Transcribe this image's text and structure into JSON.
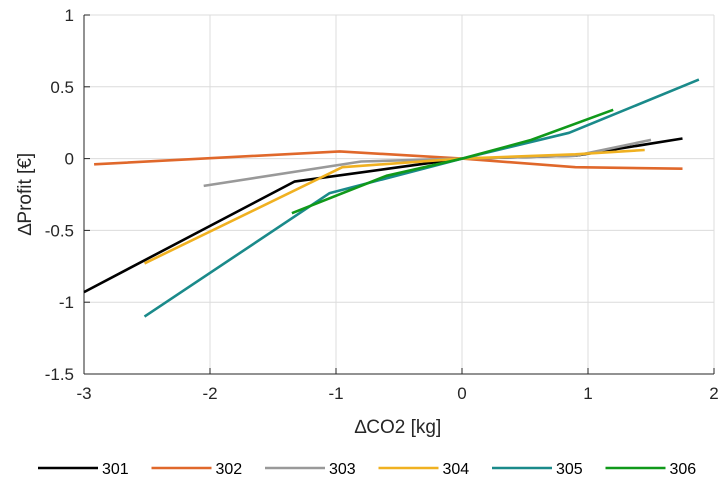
{
  "chart_data": {
    "type": "line",
    "title": "",
    "xlabel": "∆CO2 [kg]",
    "ylabel": "∆Profit [€]",
    "xlim": [
      -3,
      2
    ],
    "ylim": [
      -1.5,
      1
    ],
    "xticks": [
      -3,
      -2,
      -1,
      0,
      1,
      2
    ],
    "yticks": [
      -1.5,
      -1,
      -0.5,
      0,
      0.5,
      1
    ],
    "xtick_labels": [
      "-3",
      "-2",
      "-1",
      "0",
      "1",
      "2"
    ],
    "ytick_labels": [
      "-1.5",
      "-1",
      "-0.5",
      "0",
      "0.5",
      "1"
    ],
    "grid": true,
    "legend_position": "bottom",
    "series": [
      {
        "name": "301",
        "color": "#000000",
        "points": [
          [
            -3.0,
            -0.93
          ],
          [
            -1.33,
            -0.16
          ],
          [
            -0.5,
            -0.06
          ],
          [
            0,
            0
          ],
          [
            0.9,
            0.02
          ],
          [
            1.75,
            0.14
          ]
        ]
      },
      {
        "name": "302",
        "color": "#e0682b",
        "points": [
          [
            -2.92,
            -0.04
          ],
          [
            -0.97,
            0.05
          ],
          [
            0,
            0
          ],
          [
            0.9,
            -0.06
          ],
          [
            1.75,
            -0.07
          ]
        ]
      },
      {
        "name": "303",
        "color": "#999999",
        "points": [
          [
            -2.05,
            -0.19
          ],
          [
            -0.8,
            -0.02
          ],
          [
            0,
            0
          ],
          [
            0.9,
            0.02
          ],
          [
            1.5,
            0.13
          ]
        ]
      },
      {
        "name": "304",
        "color": "#f0b121",
        "points": [
          [
            -2.52,
            -0.73
          ],
          [
            -0.95,
            -0.06
          ],
          [
            0,
            0
          ],
          [
            0.9,
            0.03
          ],
          [
            1.45,
            0.06
          ]
        ]
      },
      {
        "name": "305",
        "color": "#1a8a8a",
        "points": [
          [
            -2.52,
            -1.1
          ],
          [
            -1.05,
            -0.24
          ],
          [
            0,
            0
          ],
          [
            0.85,
            0.18
          ],
          [
            1.88,
            0.55
          ]
        ]
      },
      {
        "name": "306",
        "color": "#10991a",
        "points": [
          [
            -1.35,
            -0.38
          ],
          [
            -0.6,
            -0.12
          ],
          [
            0,
            0
          ],
          [
            0.55,
            0.13
          ],
          [
            1.2,
            0.34
          ]
        ]
      }
    ]
  }
}
